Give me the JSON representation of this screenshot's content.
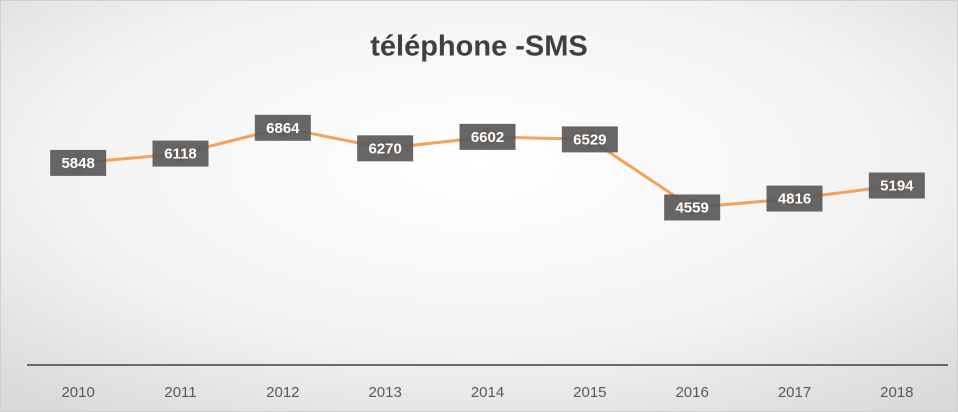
{
  "chart_data": {
    "type": "line",
    "title": "téléphone -SMS",
    "categories": [
      "2010",
      "2011",
      "2012",
      "2013",
      "2014",
      "2015",
      "2016",
      "2017",
      "2018"
    ],
    "values": [
      5848,
      6118,
      6864,
      6270,
      6602,
      6529,
      4559,
      4816,
      5194
    ],
    "color": "#f4a15c",
    "ylim": [
      0,
      9000
    ]
  }
}
